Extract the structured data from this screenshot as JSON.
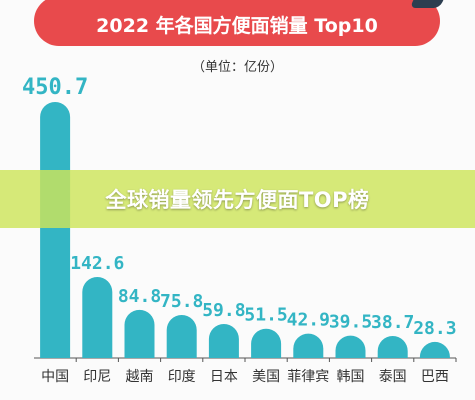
{
  "header": {
    "title": "2022 年各国方便面销量 Top10",
    "unit": "（单位：亿份）"
  },
  "banner": {
    "text": "全球销量领先方便面TOP榜"
  },
  "colors": {
    "bar": "#33b5c4",
    "value_text": "#33b5c4",
    "title_bg": "#e84a4c",
    "axis": "#555555",
    "category_text": "#333333"
  },
  "chart_data": {
    "type": "bar",
    "title": "2022 年各国方便面销量 Top10",
    "subtitle": "（单位：亿份）",
    "categories": [
      "中国",
      "印尼",
      "越南",
      "印度",
      "日本",
      "美国",
      "菲律宾",
      "韩国",
      "泰国",
      "巴西"
    ],
    "values": [
      450.7,
      142.6,
      84.8,
      75.8,
      59.8,
      51.5,
      42.9,
      39.5,
      38.7,
      28.3
    ],
    "value_labels": [
      "450.7",
      "142.6",
      "84.8",
      "75.8",
      "59.8",
      "51.5",
      "42.9",
      "39.5",
      "38.7",
      "28.3"
    ],
    "ylim": [
      0,
      450.7
    ],
    "grid": false,
    "legend": "none"
  }
}
